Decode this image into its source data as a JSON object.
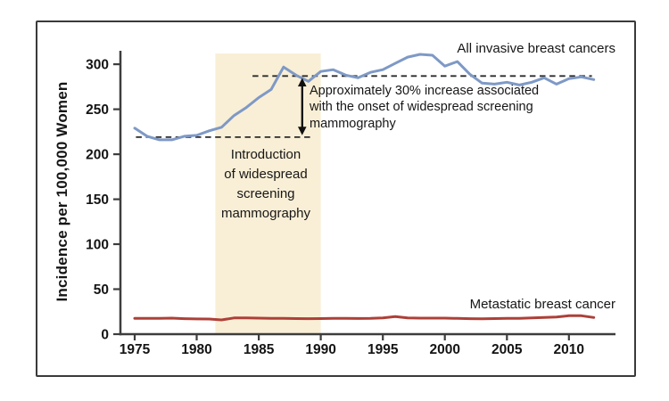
{
  "chart_data": {
    "type": "line",
    "title": "",
    "xlabel": "",
    "ylabel": "Incidence per 100,000 Women",
    "x": [
      1975,
      1976,
      1977,
      1978,
      1979,
      1980,
      1981,
      1982,
      1983,
      1984,
      1985,
      1986,
      1987,
      1988,
      1989,
      1990,
      1991,
      1992,
      1993,
      1994,
      1995,
      1996,
      1997,
      1998,
      1999,
      2000,
      2001,
      2002,
      2003,
      2004,
      2005,
      2006,
      2007,
      2008,
      2009,
      2010,
      2011,
      2012
    ],
    "series": [
      {
        "name": "All invasive breast cancers",
        "color": "#7e99c6",
        "line_width": 3,
        "values": [
          229,
          220,
          216,
          216,
          220,
          221,
          226,
          230,
          243,
          252,
          263,
          272,
          297,
          288,
          281,
          292,
          294,
          288,
          285,
          291,
          294,
          301,
          308,
          311,
          310,
          298,
          303,
          289,
          279,
          278,
          280,
          277,
          280,
          285,
          278,
          284,
          286,
          283
        ]
      },
      {
        "name": "Metastatic breast cancer",
        "color": "#ad4038",
        "line_width": 3,
        "values": [
          17.5,
          17.5,
          17.6,
          17.8,
          17.2,
          16.9,
          16.8,
          15.8,
          18,
          18,
          17.8,
          17.6,
          17.5,
          17.3,
          17.2,
          17.3,
          17.5,
          17.5,
          17.4,
          17.5,
          18,
          19.5,
          18,
          17.8,
          17.8,
          17.8,
          17.5,
          17.2,
          17,
          17.3,
          17.5,
          17.5,
          18,
          18.5,
          19,
          20.5,
          20.5,
          18.5
        ]
      }
    ],
    "xticks": [
      1975,
      1980,
      1985,
      1990,
      1995,
      2000,
      2005,
      2010
    ],
    "yticks": [
      0,
      50,
      100,
      150,
      200,
      250,
      300
    ],
    "xlim": [
      1973.85,
      2013.75
    ],
    "ylim": [
      0,
      315
    ],
    "grid": false,
    "legend_position": "inline-end-of-line-labels",
    "shaded_band": {
      "x_start": 1981.5,
      "x_end": 1990.0,
      "color": "#f9efd6",
      "label": "Introduction of widespread screening mammography"
    },
    "reference_lines": [
      {
        "value": 219,
        "x_start": 1975.1,
        "x_end": 1989.4,
        "style": "dashed"
      },
      {
        "value": 287,
        "x_start": 1984.5,
        "x_end": 2011.85,
        "style": "dashed"
      }
    ],
    "arrow": {
      "x": 1988.5,
      "from_value": 219,
      "to_value": 287
    },
    "annotations": {
      "increase_note_lines": [
        "Approximately 30% increase associated",
        "with the onset of widespread screening",
        "mammography"
      ],
      "band_label_lines": [
        "Introduction",
        "of widespread",
        "screening",
        "mammography"
      ]
    }
  }
}
